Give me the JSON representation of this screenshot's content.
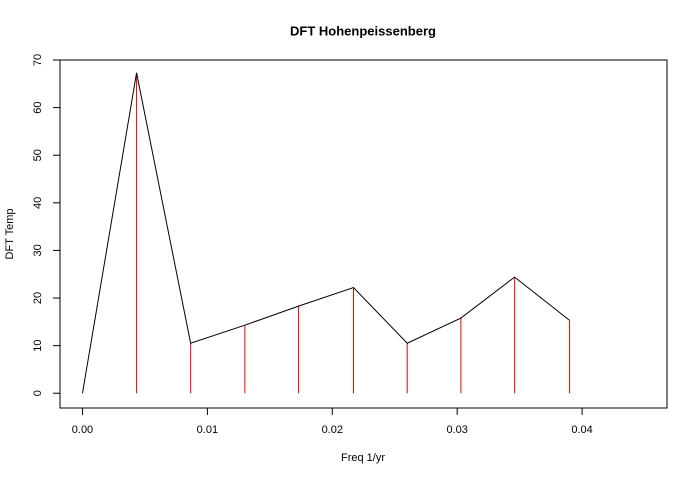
{
  "chart_data": {
    "type": "line",
    "title": "DFT Hohenpeissenberg",
    "x_label": "Freq 1/yr",
    "y_label": "DFT Temp",
    "x": [
      0,
      0.00433,
      0.00866,
      0.013,
      0.0173,
      0.0217,
      0.026,
      0.0303,
      0.0346,
      0.039
    ],
    "values": [
      0,
      67.3,
      10.5,
      14.3,
      18.3,
      22.2,
      10.5,
      15.8,
      24.4,
      15.3
    ],
    "color": "#000000",
    "stem_color": "#ff0000",
    "xlim": [
      -0.0018,
      0.0468
    ],
    "xticks": [
      {
        "value": 0,
        "label": "0.00"
      },
      {
        "value": 0.01,
        "label": "0.01"
      },
      {
        "value": 0.02,
        "label": "0.02"
      },
      {
        "value": 0.03,
        "label": "0.03"
      },
      {
        "value": 0.04,
        "label": "0.04"
      }
    ],
    "ylim": [
      -3.1,
      70
    ],
    "yticks": [
      0,
      10,
      20,
      30,
      40,
      50,
      60,
      70
    ]
  }
}
